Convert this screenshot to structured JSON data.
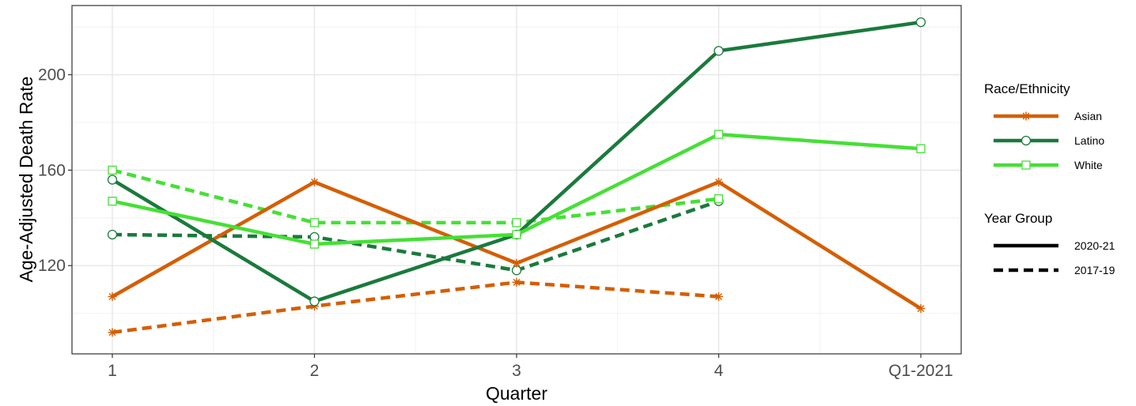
{
  "chart_data": {
    "type": "line",
    "title": "",
    "xlabel": "Quarter",
    "ylabel": "Age-Adjusted Death Rate",
    "categories": [
      "1",
      "2",
      "3",
      "4",
      "Q1-2021"
    ],
    "ylim": [
      83,
      229
    ],
    "yticks": [
      120,
      160,
      200
    ],
    "grid": true,
    "legend_position": "right",
    "legend": {
      "color_title": "Race/Ethnicity",
      "color_entries": [
        "Asian",
        "Latino",
        "White"
      ],
      "linetype_title": "Year Group",
      "linetype_entries": [
        "2020-21",
        "2017-19"
      ]
    },
    "colors": {
      "Asian": "#d55e00",
      "Latino": "#1a7a3c",
      "White": "#45e035"
    },
    "markers": {
      "Asian": "asterisk",
      "Latino": "circle",
      "White": "square"
    },
    "series": [
      {
        "group": "Asian",
        "year_group": "2017-19",
        "values": [
          92,
          103,
          113,
          107,
          null
        ]
      },
      {
        "group": "Latino",
        "year_group": "2017-19",
        "values": [
          133,
          132,
          118,
          147,
          null
        ]
      },
      {
        "group": "White",
        "year_group": "2017-19",
        "values": [
          160,
          138,
          138,
          148,
          null
        ]
      },
      {
        "group": "Asian",
        "year_group": "2020-21",
        "values": [
          107,
          155,
          121,
          155,
          102
        ]
      },
      {
        "group": "Latino",
        "year_group": "2020-21",
        "values": [
          156,
          105,
          133,
          210,
          222
        ]
      },
      {
        "group": "White",
        "year_group": "2020-21",
        "values": [
          147,
          129,
          133,
          175,
          169
        ]
      }
    ]
  }
}
